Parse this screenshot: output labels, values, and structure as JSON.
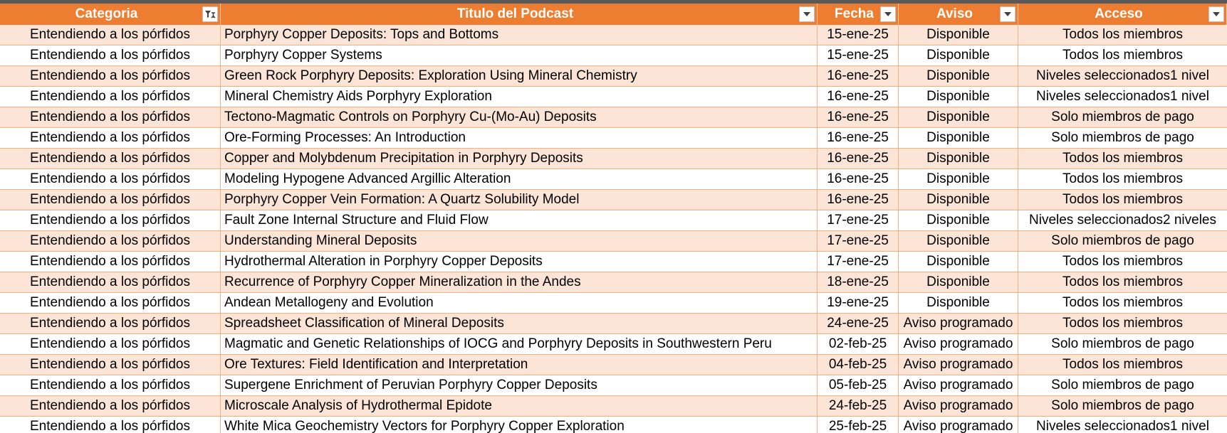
{
  "headers": [
    {
      "label": "Categoria",
      "filter_icon": "filter-applied-icon"
    },
    {
      "label": "Titulo del Podcast",
      "filter_icon": "dropdown-arrow-icon"
    },
    {
      "label": "Fecha",
      "filter_icon": "dropdown-arrow-icon"
    },
    {
      "label": "Aviso",
      "filter_icon": "dropdown-arrow-icon"
    },
    {
      "label": "Acceso",
      "filter_icon": "dropdown-arrow-icon"
    }
  ],
  "rows": [
    [
      "Entendiendo a los pórfidos",
      "Porphyry Copper Deposits: Tops and Bottoms",
      "15-ene-25",
      "Disponible",
      "Todos los miembros"
    ],
    [
      "Entendiendo a los pórfidos",
      "Porphyry Copper Systems",
      "15-ene-25",
      "Disponible",
      "Todos los miembros"
    ],
    [
      "Entendiendo a los pórfidos",
      "Green Rock Porphyry Deposits: Exploration Using Mineral Chemistry",
      "16-ene-25",
      "Disponible",
      "Niveles seleccionados1 nivel"
    ],
    [
      "Entendiendo a los pórfidos",
      "Mineral Chemistry Aids Porphyry Exploration",
      "16-ene-25",
      "Disponible",
      "Niveles seleccionados1 nivel"
    ],
    [
      "Entendiendo a los pórfidos",
      "Tectono-Magmatic Controls on Porphyry Cu-(Mo-Au) Deposits",
      "16-ene-25",
      "Disponible",
      "Solo miembros de pago"
    ],
    [
      "Entendiendo a los pórfidos",
      "Ore-Forming Processes: An Introduction",
      "16-ene-25",
      "Disponible",
      "Solo miembros de pago"
    ],
    [
      "Entendiendo a los pórfidos",
      "Copper and Molybdenum Precipitation in Porphyry Deposits",
      "16-ene-25",
      "Disponible",
      "Todos los miembros"
    ],
    [
      "Entendiendo a los pórfidos",
      "Modeling Hypogene Advanced Argillic Alteration",
      "16-ene-25",
      "Disponible",
      "Todos los miembros"
    ],
    [
      "Entendiendo a los pórfidos",
      "Porphyry Copper Vein Formation: A Quartz Solubility Model",
      "16-ene-25",
      "Disponible",
      "Todos los miembros"
    ],
    [
      "Entendiendo a los pórfidos",
      "Fault Zone Internal Structure and Fluid Flow",
      "17-ene-25",
      "Disponible",
      "Niveles seleccionados2 niveles"
    ],
    [
      "Entendiendo a los pórfidos",
      "Understanding Mineral Deposits",
      "17-ene-25",
      "Disponible",
      "Solo miembros de pago"
    ],
    [
      "Entendiendo a los pórfidos",
      "Hydrothermal Alteration in Porphyry Copper Deposits",
      "17-ene-25",
      "Disponible",
      "Todos los miembros"
    ],
    [
      "Entendiendo a los pórfidos",
      "Recurrence of Porphyry Copper Mineralization in the Andes",
      "18-ene-25",
      "Disponible",
      "Todos los miembros"
    ],
    [
      "Entendiendo a los pórfidos",
      "Andean Metallogeny and Evolution",
      "19-ene-25",
      "Disponible",
      "Todos los miembros"
    ],
    [
      "Entendiendo a los pórfidos",
      "Spreadsheet Classification of Mineral Deposits",
      "24-ene-25",
      "Aviso programado",
      "Todos los miembros"
    ],
    [
      "Entendiendo a los pórfidos",
      "Magmatic and Genetic Relationships of IOCG and Porphyry Deposits in Southwestern Peru",
      "02-feb-25",
      "Aviso programado",
      "Solo miembros de pago"
    ],
    [
      "Entendiendo a los pórfidos",
      "Ore Textures: Field Identification and Interpretation",
      "04-feb-25",
      "Aviso programado",
      "Todos los miembros"
    ],
    [
      "Entendiendo a los pórfidos",
      "Supergene Enrichment of Peruvian Porphyry Copper Deposits",
      "05-feb-25",
      "Aviso programado",
      "Solo miembros de pago"
    ],
    [
      "Entendiendo a los pórfidos",
      "Microscale Analysis of Hydrothermal Epidote",
      "24-feb-25",
      "Aviso programado",
      "Solo miembros de pago"
    ],
    [
      "Entendiendo a los pórfidos",
      "White Mica Geochemistry Vectors for Porphyry Copper Exploration",
      "25-feb-25",
      "Aviso programado",
      "Niveles seleccionados1 nivel"
    ]
  ],
  "colors": {
    "header_bg": "#ed7d31",
    "band_bg": "#fce4d6",
    "border": "#f4b183"
  }
}
